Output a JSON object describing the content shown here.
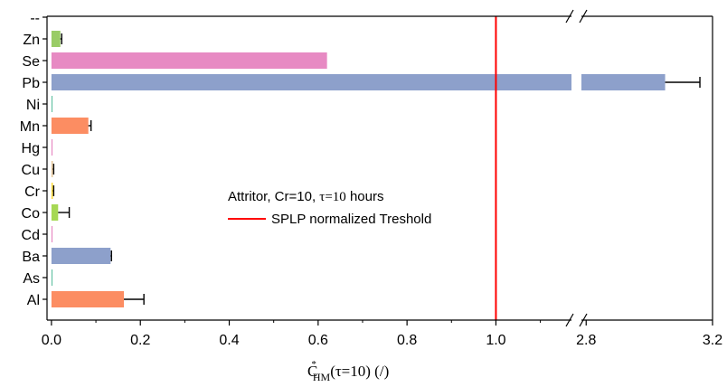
{
  "chart_data": {
    "type": "bar",
    "orientation": "horizontal",
    "categories": [
      "--",
      "Zn",
      "Se",
      "Pb",
      "Ni",
      "Mn",
      "Hg",
      "Cu",
      "Cr",
      "Co",
      "Cd",
      "Ba",
      "As",
      "Al"
    ],
    "values": [
      null,
      0.02,
      0.62,
      3.05,
      0.002,
      0.083,
      0.0,
      0.003,
      0.003,
      0.015,
      0.001,
      0.133,
      0.002,
      0.163
    ],
    "errors": [
      null,
      0.003,
      null,
      0.11,
      null,
      0.006,
      null,
      0.002,
      0.002,
      0.025,
      null,
      0.002,
      null,
      0.045
    ],
    "bar_colors": [
      "",
      "#99cc66",
      "#e78ac3",
      "#8da0cb",
      "#66c2a5",
      "#fc8d62",
      "#e78ac3",
      "#e5c494",
      "#ffd92f",
      "#a6d854",
      "#e78ac3",
      "#8da0cb",
      "#66c2a5",
      "#fc8d62"
    ],
    "threshold": {
      "value": 1.0,
      "color": "#ff0000",
      "label": "SPLP normalized Treshold"
    },
    "legend_title_prefix": "Attritor, Cr=10, ",
    "legend_title_tau": "τ=10",
    "legend_title_suffix": " hours",
    "x_axis": {
      "segment1_range": [
        -0.01,
        1.17
      ],
      "segment2_range": [
        2.785,
        3.2
      ],
      "ticks_segment1": [
        0.0,
        0.2,
        0.4,
        0.6,
        0.8,
        1.0
      ],
      "ticks_segment2": [
        2.8,
        3.2
      ],
      "tick_labels_segment1": [
        "0.0",
        "0.2",
        "0.4",
        "0.6",
        "0.8",
        "1.0"
      ],
      "tick_labels_segment2": [
        "2.8",
        "3.2"
      ],
      "break": true
    },
    "xlabel_main": "C",
    "xlabel_sup": "*",
    "xlabel_sub": "HM",
    "xlabel_rest": "(τ=10)  (/)",
    "ylabel": "",
    "grid": false,
    "legend_placement": "center"
  }
}
